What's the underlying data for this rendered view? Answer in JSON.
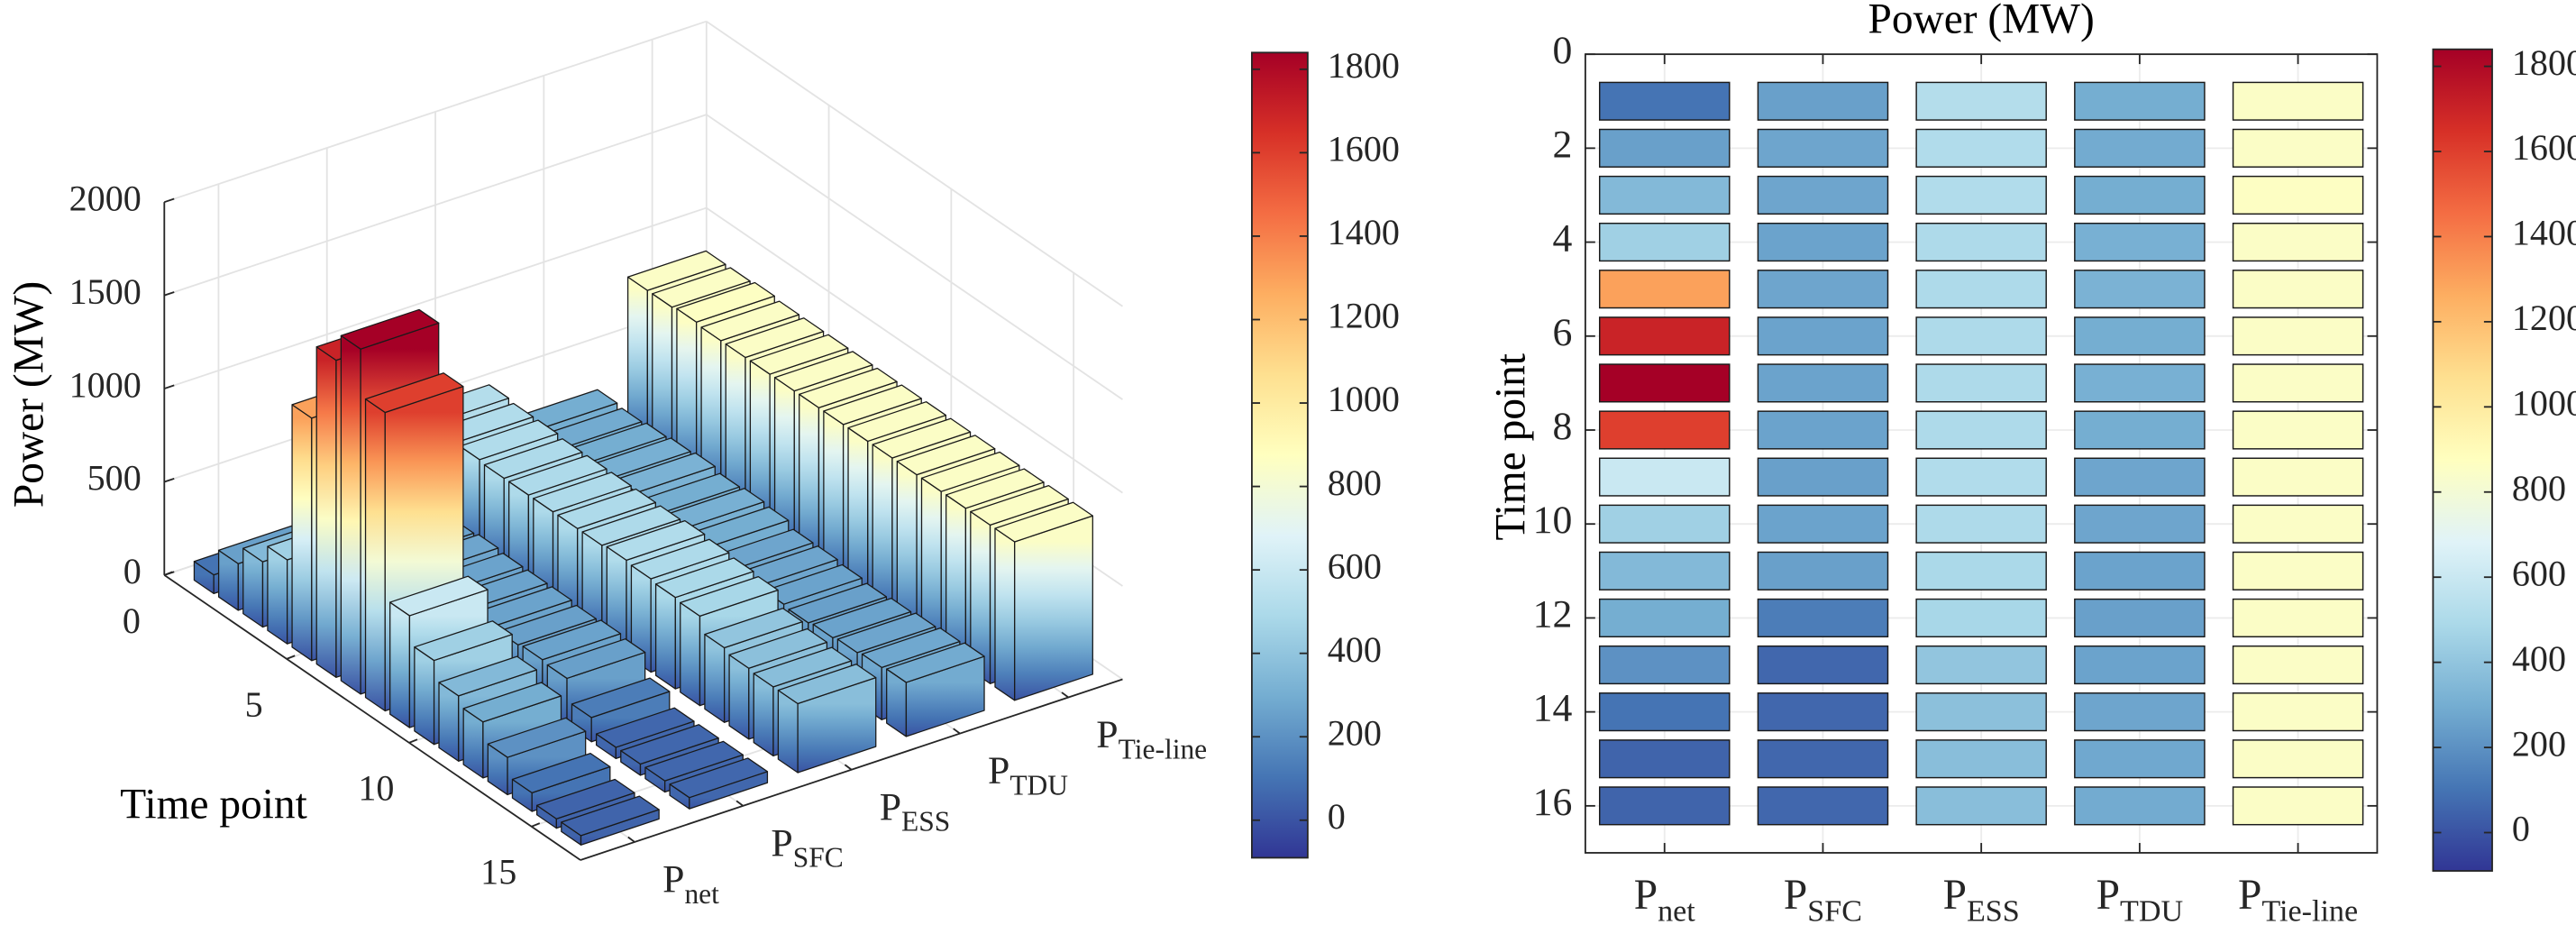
{
  "chart_data": [
    {
      "type": "bar3d",
      "xlabel": "Time point",
      "zlabel": "Power (MW)",
      "x": [
        1,
        2,
        3,
        4,
        5,
        6,
        7,
        8,
        9,
        10,
        11,
        12,
        13,
        14,
        15,
        16
      ],
      "xlim": [
        0,
        17
      ],
      "xticks": [
        0,
        5,
        10,
        15
      ],
      "zlim": [
        0,
        2000
      ],
      "zticks": [
        0,
        500,
        1000,
        1500,
        2000
      ],
      "series": [
        {
          "name": "P",
          "name_sub": "net",
          "values": [
            100,
            250,
            350,
            450,
            1300,
            1700,
            1850,
            1600,
            600,
            450,
            350,
            300,
            200,
            100,
            50,
            50
          ]
        },
        {
          "name": "P",
          "name_sub": "SFC",
          "values": [
            250,
            270,
            270,
            260,
            270,
            260,
            260,
            260,
            250,
            260,
            250,
            130,
            60,
            60,
            60,
            60
          ]
        },
        {
          "name": "P",
          "name_sub": "ESS",
          "values": [
            520,
            510,
            510,
            500,
            500,
            500,
            500,
            500,
            510,
            500,
            490,
            480,
            400,
            380,
            370,
            370
          ]
        },
        {
          "name": "P",
          "name_sub": "TDU",
          "values": [
            300,
            290,
            300,
            310,
            320,
            300,
            310,
            300,
            270,
            270,
            260,
            250,
            260,
            270,
            280,
            290
          ]
        },
        {
          "name": "P",
          "name_sub": "Tie-line",
          "values": [
            850,
            850,
            860,
            850,
            850,
            850,
            850,
            850,
            850,
            850,
            850,
            850,
            850,
            850,
            850,
            850
          ]
        }
      ],
      "colormap": [
        "#313695",
        "#4575b4",
        "#74add1",
        "#abd9e9",
        "#e0f3f8",
        "#ffffbf",
        "#fee090",
        "#fdae61",
        "#f46d43",
        "#d73027",
        "#a50026"
      ],
      "clim": [
        -90,
        1840
      ],
      "cticks": [
        0,
        200,
        400,
        600,
        800,
        1000,
        1200,
        1400,
        1600,
        1800
      ],
      "grid": true
    },
    {
      "type": "heatmap",
      "title": "Power (MW)",
      "ylabel": "Time point",
      "y": [
        1,
        2,
        3,
        4,
        5,
        6,
        7,
        8,
        9,
        10,
        11,
        12,
        13,
        14,
        15,
        16
      ],
      "ylim": [
        0,
        17
      ],
      "yticks": [
        0,
        2,
        4,
        6,
        8,
        10,
        12,
        14,
        16
      ],
      "y_reversed": true,
      "series": [
        {
          "name": "P",
          "name_sub": "net",
          "values": [
            100,
            250,
            350,
            450,
            1300,
            1700,
            1850,
            1600,
            600,
            450,
            350,
            300,
            200,
            100,
            50,
            50
          ]
        },
        {
          "name": "P",
          "name_sub": "SFC",
          "values": [
            250,
            270,
            270,
            260,
            270,
            260,
            260,
            260,
            250,
            260,
            250,
            130,
            60,
            60,
            60,
            60
          ]
        },
        {
          "name": "P",
          "name_sub": "ESS",
          "values": [
            520,
            510,
            510,
            500,
            500,
            500,
            500,
            500,
            510,
            500,
            490,
            480,
            400,
            380,
            370,
            370
          ]
        },
        {
          "name": "P",
          "name_sub": "TDU",
          "values": [
            300,
            290,
            300,
            310,
            320,
            300,
            310,
            300,
            270,
            270,
            260,
            250,
            260,
            270,
            280,
            290
          ]
        },
        {
          "name": "P",
          "name_sub": "Tie-line",
          "values": [
            850,
            850,
            860,
            850,
            850,
            850,
            850,
            850,
            850,
            850,
            850,
            850,
            850,
            850,
            850,
            850
          ]
        }
      ],
      "colormap": [
        "#313695",
        "#4575b4",
        "#74add1",
        "#abd9e9",
        "#e0f3f8",
        "#ffffbf",
        "#fee090",
        "#fdae61",
        "#f46d43",
        "#d73027",
        "#a50026"
      ],
      "clim": [
        -90,
        1840
      ],
      "cticks": [
        0,
        200,
        400,
        600,
        800,
        1000,
        1200,
        1400,
        1600,
        1800
      ],
      "grid": true
    }
  ]
}
